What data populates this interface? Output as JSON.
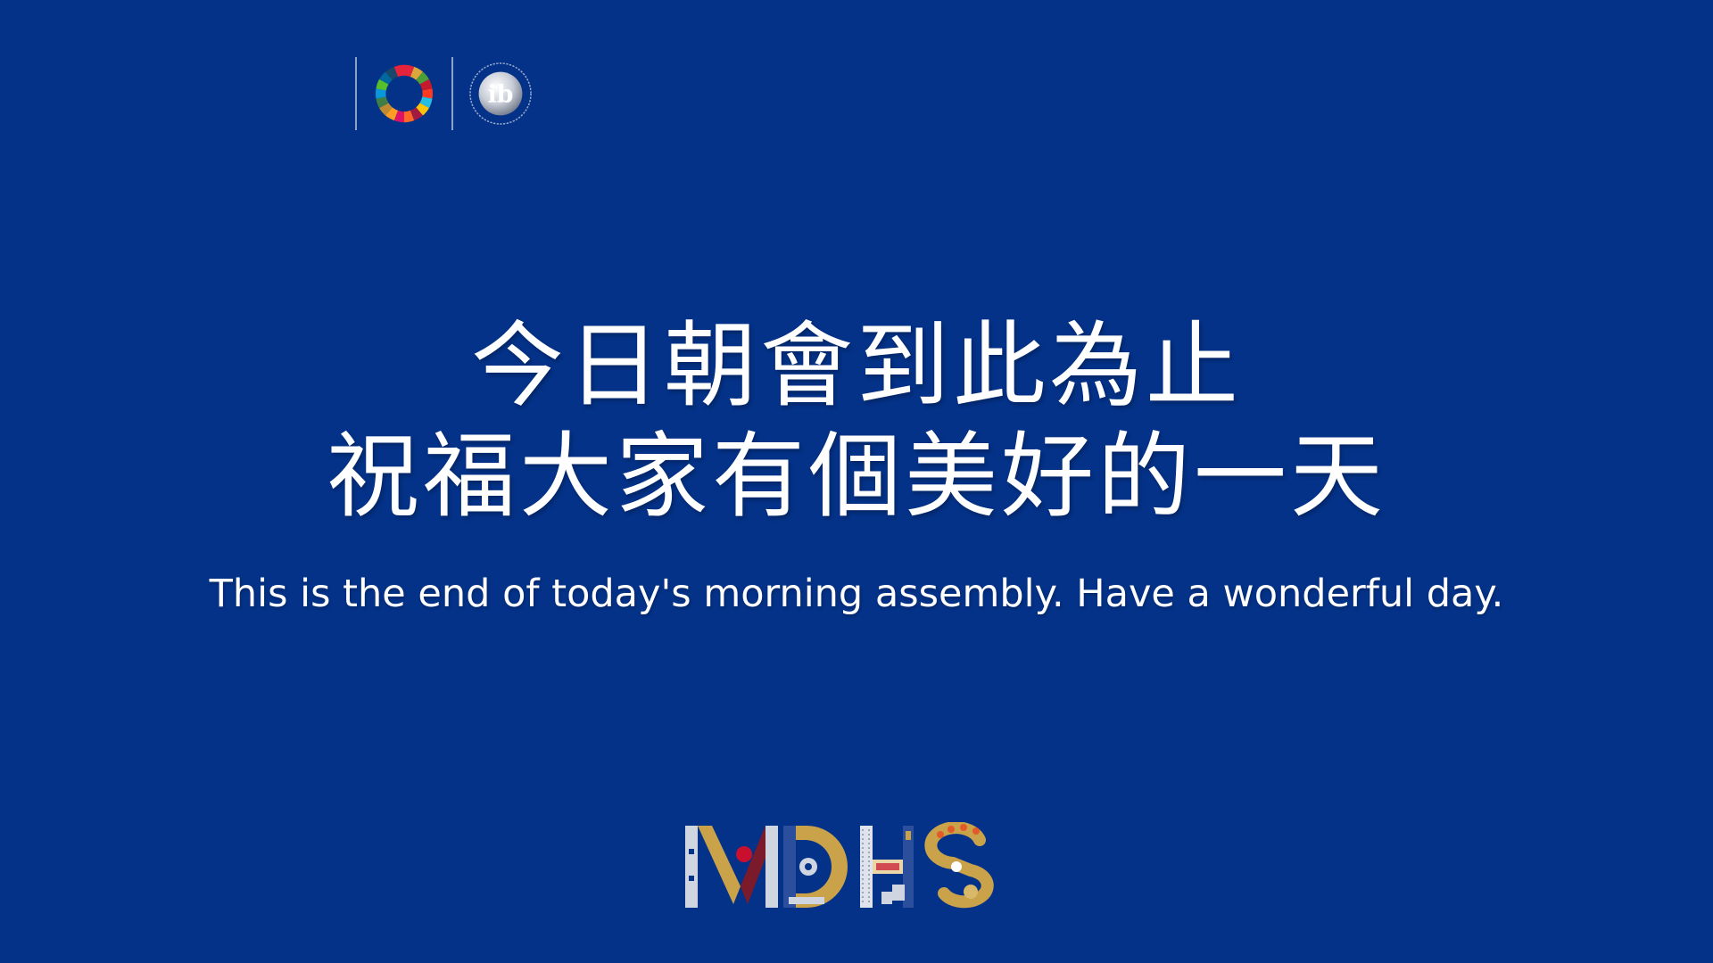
{
  "header": {
    "sdg_logo": "sdg-wheel-logo",
    "ib_logo": "ib-world-school-logo",
    "ib_logo_text": "ib"
  },
  "main": {
    "title_line_1": "今日朝會到此為止",
    "title_line_2": "祝福大家有個美好的一天",
    "subtitle": "This is the end of today's morning assembly. Have a wonderful day."
  },
  "footer": {
    "wordmark_text": "MDHS"
  },
  "colors": {
    "background": "#043288",
    "text": "#ffffff",
    "wordmark_gold": "#c9a24a",
    "wordmark_silver": "#cfd6e2"
  }
}
